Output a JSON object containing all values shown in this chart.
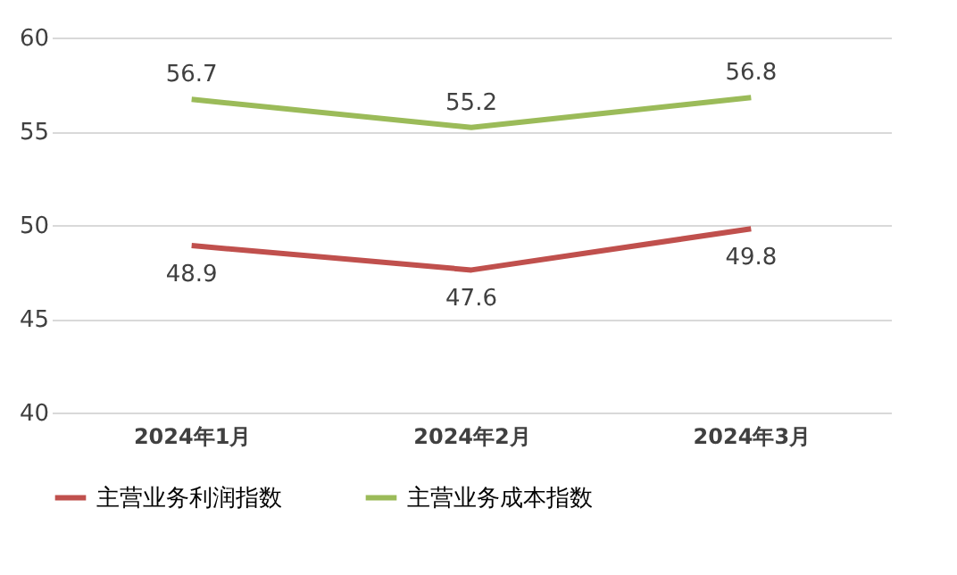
{
  "chart_data": {
    "type": "line",
    "categories": [
      "2024年1月",
      "2024年2月",
      "2024年3月"
    ],
    "series": [
      {
        "name": "主营业务利润指数",
        "color": "#c0504d",
        "values": [
          48.9,
          47.6,
          49.8
        ]
      },
      {
        "name": "主营业务成本指数",
        "color": "#9bbb59",
        "values": [
          56.7,
          55.2,
          56.8
        ]
      }
    ],
    "ylim": [
      40,
      60
    ],
    "yticks": [
      40,
      45,
      50,
      55,
      60
    ],
    "grid": "y",
    "legend": "bottom",
    "data_labels": true,
    "marker": "none",
    "line_style": "solid"
  }
}
